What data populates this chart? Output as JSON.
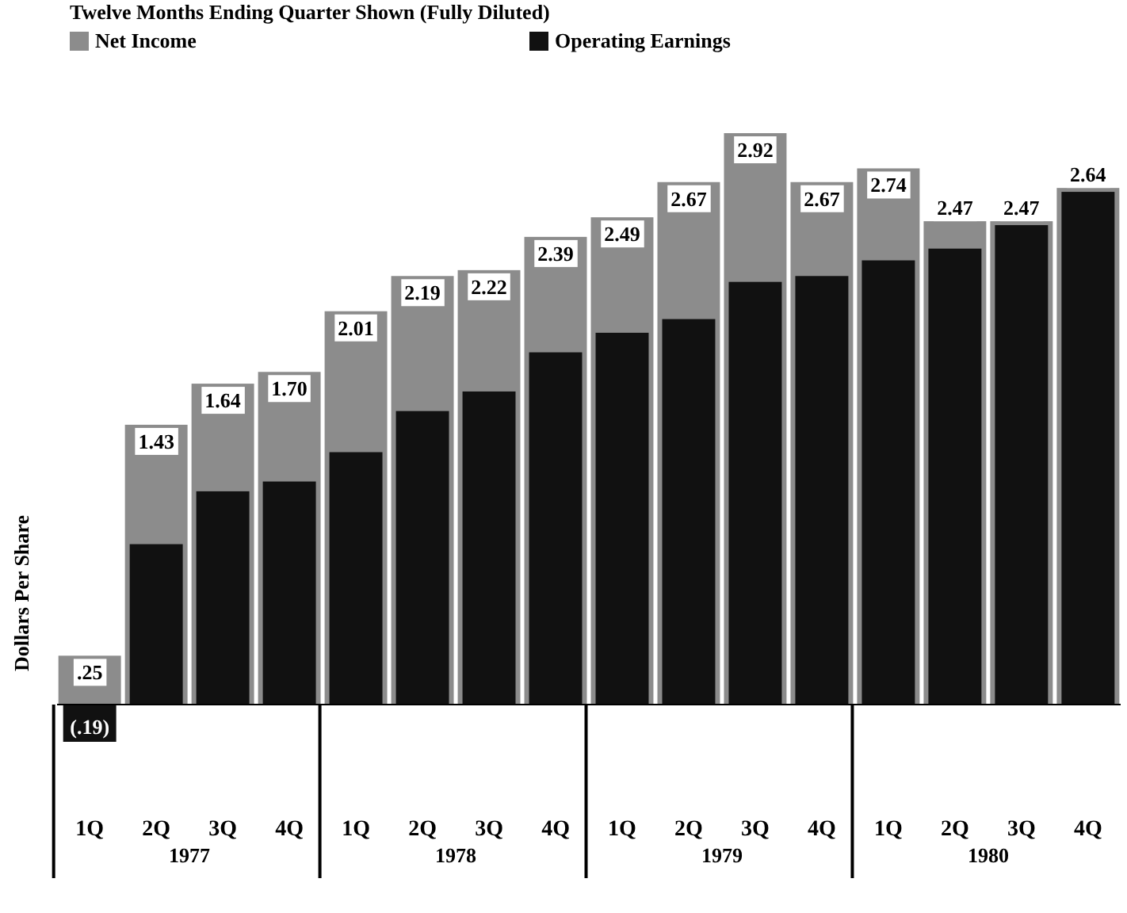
{
  "chart_data": {
    "type": "bar",
    "title": "Twelve Months Ending Quarter Shown (Fully Diluted)",
    "ylabel": "Dollars Per Share",
    "categories": [
      "1Q",
      "2Q",
      "3Q",
      "4Q",
      "1Q",
      "2Q",
      "3Q",
      "4Q",
      "1Q",
      "2Q",
      "3Q",
      "4Q",
      "1Q",
      "2Q",
      "3Q",
      "4Q"
    ],
    "annotations": [
      "1977",
      "1978",
      "1979",
      "1980"
    ],
    "series": [
      {
        "name": "Net Income",
        "color": "#8c8c8c",
        "values": [
          0.25,
          1.43,
          1.64,
          1.7,
          2.01,
          2.19,
          2.22,
          2.39,
          2.49,
          2.67,
          2.92,
          2.67,
          2.74,
          2.47,
          2.47,
          2.64
        ],
        "value_labels": [
          ".25",
          "1.43",
          "1.64",
          "1.70",
          "2.01",
          "2.19",
          "2.22",
          "2.39",
          "2.49",
          "2.67",
          "2.92",
          "2.67",
          "2.74",
          "2.47",
          "2.47",
          "2.64"
        ]
      },
      {
        "name": "Operating Earnings",
        "color": "#111111",
        "values": [
          -0.19,
          0.82,
          1.09,
          1.14,
          1.29,
          1.5,
          1.6,
          1.8,
          1.9,
          1.97,
          2.16,
          2.19,
          2.27,
          2.33,
          2.45,
          2.62
        ],
        "value_labels": [
          "(.19)",
          null,
          null,
          null,
          null,
          null,
          null,
          null,
          null,
          null,
          null,
          null,
          null,
          null,
          null,
          null
        ]
      }
    ],
    "tick_labels": "x",
    "legend": "top left"
  }
}
